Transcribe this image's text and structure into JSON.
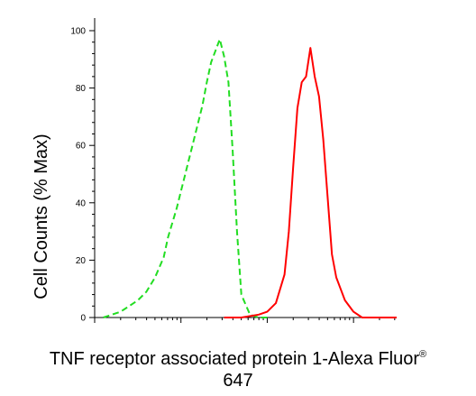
{
  "chart_data": {
    "type": "line",
    "title": "",
    "xlabel": "TNF receptor associated protein 1-Alexa Fluor",
    "xlabel_superscript": "®",
    "xlabel_line2": "647",
    "ylabel": "Cell Counts (% Max)",
    "xscale": "log",
    "ylim": [
      0,
      100
    ],
    "yticks": [
      "0",
      "20",
      "40",
      "60",
      "80",
      "100"
    ],
    "grid": false,
    "legend": "none",
    "series": [
      {
        "color": "#22dd22",
        "style": "dashed",
        "x": [
          0.6,
          0.7,
          0.8,
          0.9,
          1.0,
          1.1,
          1.2,
          1.3,
          1.35,
          1.45,
          1.55,
          1.65,
          1.75,
          1.8,
          1.85,
          1.9,
          1.95,
          2.0,
          2.05,
          2.1,
          2.15,
          2.2,
          2.3,
          2.4,
          2.5
        ],
        "y": [
          0,
          1,
          2,
          4,
          6,
          9,
          14,
          21,
          28,
          38,
          50,
          62,
          74,
          82,
          89,
          93,
          97,
          91,
          82,
          58,
          30,
          8,
          1,
          0,
          0
        ]
      },
      {
        "color": "#ff0000",
        "style": "solid",
        "x": [
          2.0,
          2.2,
          2.4,
          2.5,
          2.6,
          2.7,
          2.75,
          2.8,
          2.85,
          2.9,
          2.95,
          3.0,
          3.05,
          3.1,
          3.15,
          3.2,
          3.25,
          3.3,
          3.35,
          3.4,
          3.5,
          3.6,
          3.7,
          3.8,
          4.0
        ],
        "y": [
          0,
          0,
          1,
          2,
          5,
          15,
          30,
          52,
          73,
          82,
          84,
          94,
          84,
          77,
          62,
          42,
          22,
          14,
          10,
          6,
          2,
          0,
          0,
          0,
          0
        ]
      }
    ]
  }
}
